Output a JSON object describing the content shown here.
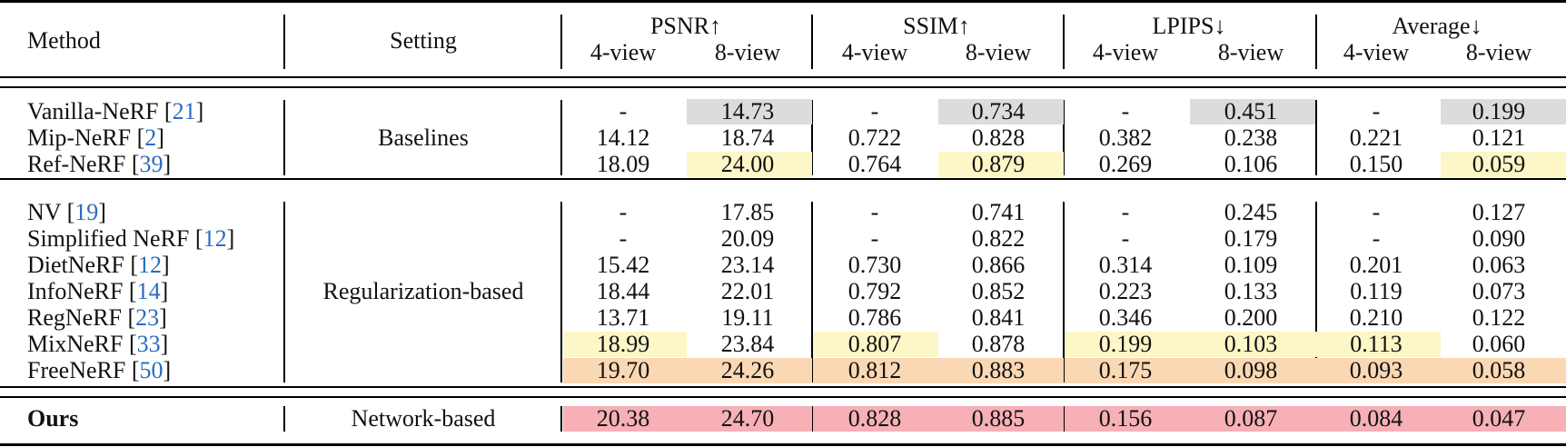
{
  "colors": {
    "gray": "#dcdcdc",
    "yellow": "#fdf6c6",
    "orange": "#fbd8b4",
    "red": "#f6b0b6",
    "cite": "#2a6cc0"
  },
  "header": {
    "method": "Method",
    "setting": "Setting",
    "groups": [
      "PSNR↑",
      "SSIM↑",
      "LPIPS↓",
      "Average↓"
    ],
    "view4": "4-view",
    "view8": "8-view"
  },
  "sections": [
    {
      "setting": "Baselines",
      "rows": [
        {
          "name": "Vanilla-NeRF [",
          "cite": "21",
          "close": "]",
          "values": [
            "-",
            "14.73",
            "-",
            "0.734",
            "-",
            "0.451",
            "-",
            "0.199"
          ],
          "hl": [
            null,
            "gray",
            null,
            "gray",
            null,
            "gray",
            null,
            "gray"
          ]
        },
        {
          "name": "Mip-NeRF [",
          "cite": "2",
          "close": "]",
          "values": [
            "14.12",
            "18.74",
            "0.722",
            "0.828",
            "0.382",
            "0.238",
            "0.221",
            "0.121"
          ],
          "hl": [
            null,
            null,
            null,
            null,
            null,
            null,
            null,
            null
          ]
        },
        {
          "name": "Ref-NeRF [",
          "cite": "39",
          "close": "]",
          "values": [
            "18.09",
            "24.00",
            "0.764",
            "0.879",
            "0.269",
            "0.106",
            "0.150",
            "0.059"
          ],
          "hl": [
            null,
            "yellow",
            null,
            "yellow",
            null,
            null,
            null,
            "yellow"
          ]
        }
      ]
    },
    {
      "setting": "Regularization-based",
      "rows": [
        {
          "name": "NV [",
          "cite": "19",
          "close": "]",
          "values": [
            "-",
            "17.85",
            "-",
            "0.741",
            "-",
            "0.245",
            "-",
            "0.127"
          ],
          "hl": [
            null,
            null,
            null,
            null,
            null,
            null,
            null,
            null
          ]
        },
        {
          "name": "Simplified NeRF [",
          "cite": "12",
          "close": "]",
          "values": [
            "-",
            "20.09",
            "-",
            "0.822",
            "-",
            "0.179",
            "-",
            "0.090"
          ],
          "hl": [
            null,
            null,
            null,
            null,
            null,
            null,
            null,
            null
          ]
        },
        {
          "name": "DietNeRF [",
          "cite": "12",
          "close": "]",
          "values": [
            "15.42",
            "23.14",
            "0.730",
            "0.866",
            "0.314",
            "0.109",
            "0.201",
            "0.063"
          ],
          "hl": [
            null,
            null,
            null,
            null,
            null,
            null,
            null,
            null
          ]
        },
        {
          "name": "InfoNeRF [",
          "cite": "14",
          "close": "]",
          "values": [
            "18.44",
            "22.01",
            "0.792",
            "0.852",
            "0.223",
            "0.133",
            "0.119",
            "0.073"
          ],
          "hl": [
            null,
            null,
            null,
            null,
            null,
            null,
            null,
            null
          ]
        },
        {
          "name": "RegNeRF [",
          "cite": "23",
          "close": "]",
          "values": [
            "13.71",
            "19.11",
            "0.786",
            "0.841",
            "0.346",
            "0.200",
            "0.210",
            "0.122"
          ],
          "hl": [
            null,
            null,
            null,
            null,
            null,
            null,
            null,
            null
          ]
        },
        {
          "name": "MixNeRF [",
          "cite": "33",
          "close": "]",
          "values": [
            "18.99",
            "23.84",
            "0.807",
            "0.878",
            "0.199",
            "0.103",
            "0.113",
            "0.060"
          ],
          "hl": [
            "yellow",
            null,
            "yellow",
            null,
            "yellow",
            "yellow",
            "yellow",
            null
          ]
        },
        {
          "name": "FreeNeRF [",
          "cite": "50",
          "close": "]",
          "values": [
            "19.70",
            "24.26",
            "0.812",
            "0.883",
            "0.175",
            "0.098",
            "0.093",
            "0.058"
          ],
          "hl": [
            "orange",
            "orange",
            "orange",
            "orange",
            "orange",
            "orange",
            "orange",
            "orange"
          ]
        }
      ]
    },
    {
      "setting": "Network-based",
      "rows": [
        {
          "name": "Ours",
          "cite": "",
          "close": "",
          "bold": true,
          "values": [
            "20.38",
            "24.70",
            "0.828",
            "0.885",
            "0.156",
            "0.087",
            "0.084",
            "0.047"
          ],
          "hl": [
            "red",
            "red",
            "red",
            "red",
            "red",
            "red",
            "red",
            "red"
          ]
        }
      ]
    }
  ]
}
